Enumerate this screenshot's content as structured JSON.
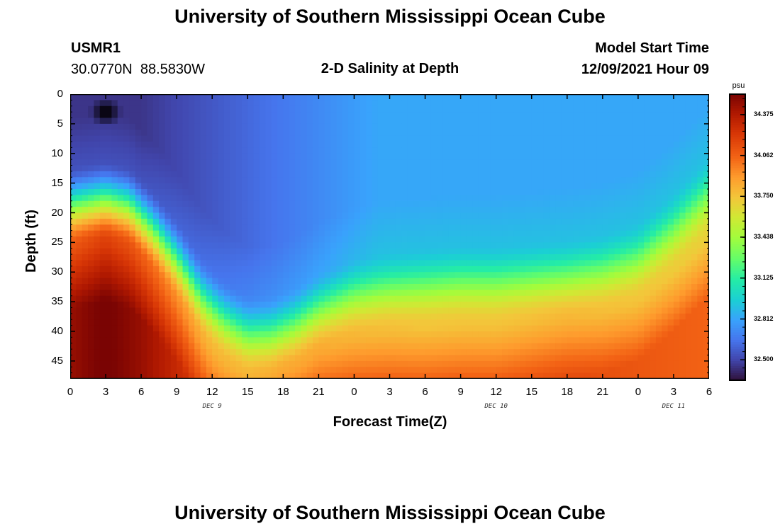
{
  "title": "University of Southern Mississippi Ocean Cube",
  "footer_title": "University of Southern Mississippi Ocean Cube",
  "station": {
    "id": "USMR1",
    "coords": "30.0770N  88.5830W"
  },
  "plot_title": "2-D Salinity at Depth",
  "model": {
    "label": "Model Start Time",
    "value": "12/09/2021 Hour 09"
  },
  "chart_data": {
    "type": "heatmap",
    "xlabel": "Forecast Time(Z)",
    "ylabel": "Depth (ft)",
    "x_unit": "hours from 12/09 00Z",
    "xlim": [
      0,
      54
    ],
    "ylim": [
      0,
      48
    ],
    "y_reversed": true,
    "x_ticks": [
      0,
      3,
      6,
      9,
      12,
      15,
      18,
      21,
      24,
      27,
      30,
      33,
      36,
      39,
      42,
      45,
      48,
      51,
      54
    ],
    "x_tick_labels": [
      "0",
      "3",
      "6",
      "9",
      "12",
      "15",
      "18",
      "21",
      "0",
      "3",
      "6",
      "9",
      "12",
      "15",
      "18",
      "21",
      "0",
      "3",
      "6"
    ],
    "y_ticks": [
      0,
      5,
      10,
      15,
      20,
      25,
      30,
      35,
      40,
      45
    ],
    "y_tick_labels": [
      "0",
      "5",
      "10",
      "15",
      "20",
      "25",
      "30",
      "35",
      "40",
      "45"
    ],
    "day_labels": [
      {
        "text": "DEC 9",
        "x": 12
      },
      {
        "text": "DEC 10",
        "x": 36
      },
      {
        "text": "DEC 11",
        "x": 51
      }
    ],
    "colorbar": {
      "unit": "psu",
      "min": 32.344,
      "max": 34.531,
      "ticks": [
        32.5,
        32.812,
        33.125,
        33.438,
        33.75,
        34.062,
        34.375
      ],
      "tick_labels": [
        "32.500",
        "32.812",
        "33.125",
        "33.438",
        "33.750",
        "34.062",
        "34.375"
      ]
    },
    "surface_value_psu": 32.45,
    "halocline_depth_ft": [
      [
        0,
        18
      ],
      [
        3,
        17
      ],
      [
        5,
        18
      ],
      [
        7,
        22
      ],
      [
        9,
        27
      ],
      [
        11,
        33
      ],
      [
        13,
        37
      ],
      [
        15,
        39.5
      ],
      [
        17,
        39.5
      ],
      [
        19,
        38
      ],
      [
        21,
        35.5
      ],
      [
        24,
        33
      ],
      [
        27,
        32
      ],
      [
        30,
        31.5
      ],
      [
        33,
        31
      ],
      [
        36,
        31
      ],
      [
        39,
        30.5
      ],
      [
        42,
        30
      ],
      [
        45,
        29
      ],
      [
        48,
        27
      ],
      [
        51,
        22
      ],
      [
        54,
        16
      ]
    ],
    "bottom_max_psu": [
      [
        0,
        34.45
      ],
      [
        3,
        34.55
      ],
      [
        6,
        34.45
      ],
      [
        9,
        34.3
      ],
      [
        12,
        34.15
      ],
      [
        15,
        34.15
      ],
      [
        18,
        34.2
      ],
      [
        21,
        34.2
      ],
      [
        24,
        34.15
      ],
      [
        30,
        34.1
      ],
      [
        36,
        34.1
      ],
      [
        42,
        34.15
      ],
      [
        48,
        34.1
      ],
      [
        54,
        34.05
      ]
    ],
    "anomaly": {
      "x": 3,
      "depth": 3,
      "value": "below-scale"
    }
  }
}
